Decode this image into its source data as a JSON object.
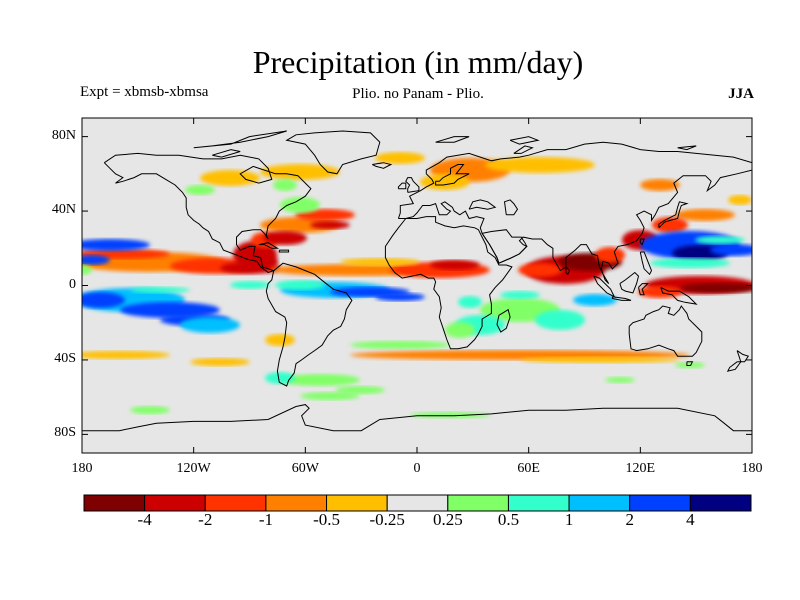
{
  "title": "Precipitation (in mm/day)",
  "experiment": "Expt = xbmsb-xbmsa",
  "subtitle": "Plio. no Panam - Plio.",
  "season": "JJA",
  "map": {
    "projection": "cylindrical-equidistant",
    "lon_range": [
      -180,
      180
    ],
    "lat_range": [
      -90,
      90
    ],
    "background_color": "#e6e6e6",
    "coastline_color": "#000000",
    "lat_ticks": [
      {
        "value": 80,
        "label": "80N"
      },
      {
        "value": 40,
        "label": "40N"
      },
      {
        "value": 0,
        "label": "0"
      },
      {
        "value": -40,
        "label": "40S"
      },
      {
        "value": -80,
        "label": "80S"
      }
    ],
    "lon_ticks": [
      {
        "value": -180,
        "label": "180"
      },
      {
        "value": -120,
        "label": "120W"
      },
      {
        "value": -60,
        "label": "60W"
      },
      {
        "value": 0,
        "label": "0"
      },
      {
        "value": 60,
        "label": "60E"
      },
      {
        "value": 120,
        "label": "120E"
      },
      {
        "value": 180,
        "label": "180"
      }
    ]
  },
  "colorbar": {
    "colors": [
      "#7f0000",
      "#cc0000",
      "#ff3300",
      "#ff8000",
      "#ffbf00",
      "#e6e6e6",
      "#80ff66",
      "#33ffcc",
      "#00bfff",
      "#0040ff",
      "#000080"
    ],
    "boundaries": [
      -4,
      -2,
      -1,
      -0.5,
      -0.25,
      0.25,
      0.5,
      1,
      2,
      4
    ],
    "labels": [
      "-4",
      "-2",
      "-1",
      "-0.5",
      "-0.25",
      "0.25",
      "0.5",
      "1",
      "2",
      "4"
    ]
  },
  "anomaly_regions": [
    {
      "name": "east-pacific-itcz-drying",
      "lon": -150,
      "lat": 14,
      "level": "-4"
    },
    {
      "name": "caribbean-drying",
      "lon": -80,
      "lat": 15,
      "level": "-2"
    },
    {
      "name": "north-atlantic-drying",
      "lon": -55,
      "lat": 35,
      "level": "-1"
    },
    {
      "name": "tropical-atlantic-drying",
      "lon": -30,
      "lat": 8,
      "level": "-2"
    },
    {
      "name": "west-africa-drying",
      "lon": 10,
      "lat": 8,
      "level": "-2"
    },
    {
      "name": "europe-drying",
      "lon": 15,
      "lat": 60,
      "level": "-0.5"
    },
    {
      "name": "indian-ocean-drying",
      "lon": 75,
      "lat": 5,
      "level": "-2"
    },
    {
      "name": "maritime-continent-drying",
      "lon": 115,
      "lat": 8,
      "level": "-2"
    },
    {
      "name": "east-asia-drying",
      "lon": 140,
      "lat": 35,
      "level": "-0.5"
    },
    {
      "name": "west-pacific-drying",
      "lon": 160,
      "lat": 3,
      "level": "-2"
    },
    {
      "name": "southern-ocean-drying",
      "lon": 30,
      "lat": -42,
      "level": "-0.5"
    },
    {
      "name": "east-pacific-wetting",
      "lon": -140,
      "lat": -7,
      "level": "2"
    },
    {
      "name": "equatorial-atlantic-wetting",
      "lon": -20,
      "lat": -2,
      "level": "2"
    },
    {
      "name": "north-pacific-wetting",
      "lon": -170,
      "lat": 12,
      "level": "2"
    },
    {
      "name": "indian-ocean-wetting",
      "lon": 80,
      "lat": -8,
      "level": "0.5"
    },
    {
      "name": "west-pacific-wetting",
      "lon": 145,
      "lat": 17,
      "level": "4"
    },
    {
      "name": "southern-ocean-wetting",
      "lon": -40,
      "lat": -55,
      "level": "0.5"
    }
  ]
}
